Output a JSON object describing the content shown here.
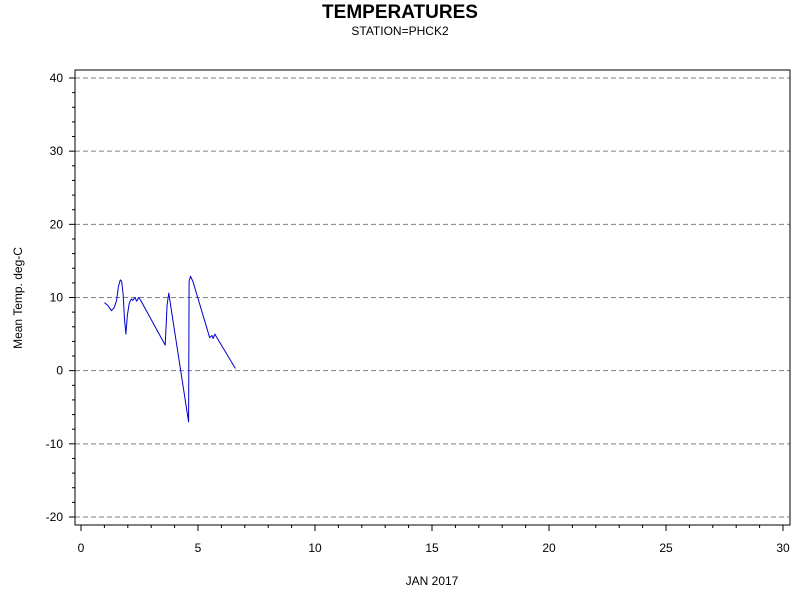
{
  "chart_data": {
    "type": "line",
    "title": "TEMPERATURES",
    "subtitle": "STATION=PHCK2",
    "xlabel": "JAN 2017",
    "ylabel": "Mean Temp. deg-C",
    "xlim": [
      0,
      30
    ],
    "ylim": [
      -20,
      40
    ],
    "x_ticks": [
      0,
      5,
      10,
      15,
      20,
      25,
      30
    ],
    "y_ticks": [
      -20,
      -10,
      0,
      10,
      20,
      30,
      40
    ],
    "grid": "horizontal-dashed",
    "series": [
      {
        "color": "#0000cc",
        "points": [
          [
            1.0,
            9.3
          ],
          [
            1.15,
            8.9
          ],
          [
            1.3,
            8.2
          ],
          [
            1.42,
            8.6
          ],
          [
            1.52,
            9.6
          ],
          [
            1.6,
            11.5
          ],
          [
            1.68,
            12.4
          ],
          [
            1.74,
            12.2
          ],
          [
            1.8,
            10.5
          ],
          [
            1.86,
            7.0
          ],
          [
            1.92,
            5.0
          ],
          [
            1.98,
            7.5
          ],
          [
            2.06,
            9.2
          ],
          [
            2.15,
            9.8
          ],
          [
            2.22,
            9.6
          ],
          [
            2.3,
            10.0
          ],
          [
            2.38,
            9.5
          ],
          [
            2.46,
            10.0
          ],
          [
            2.55,
            9.6
          ],
          [
            3.6,
            3.5
          ],
          [
            3.68,
            9.0
          ],
          [
            3.75,
            10.6
          ],
          [
            3.85,
            8.5
          ],
          [
            4.6,
            -7.0
          ],
          [
            4.62,
            12.2
          ],
          [
            4.68,
            12.9
          ],
          [
            4.78,
            12.2
          ],
          [
            5.5,
            4.5
          ],
          [
            5.6,
            4.8
          ],
          [
            5.65,
            4.4
          ],
          [
            5.72,
            5.0
          ],
          [
            6.6,
            0.3
          ]
        ]
      }
    ]
  }
}
